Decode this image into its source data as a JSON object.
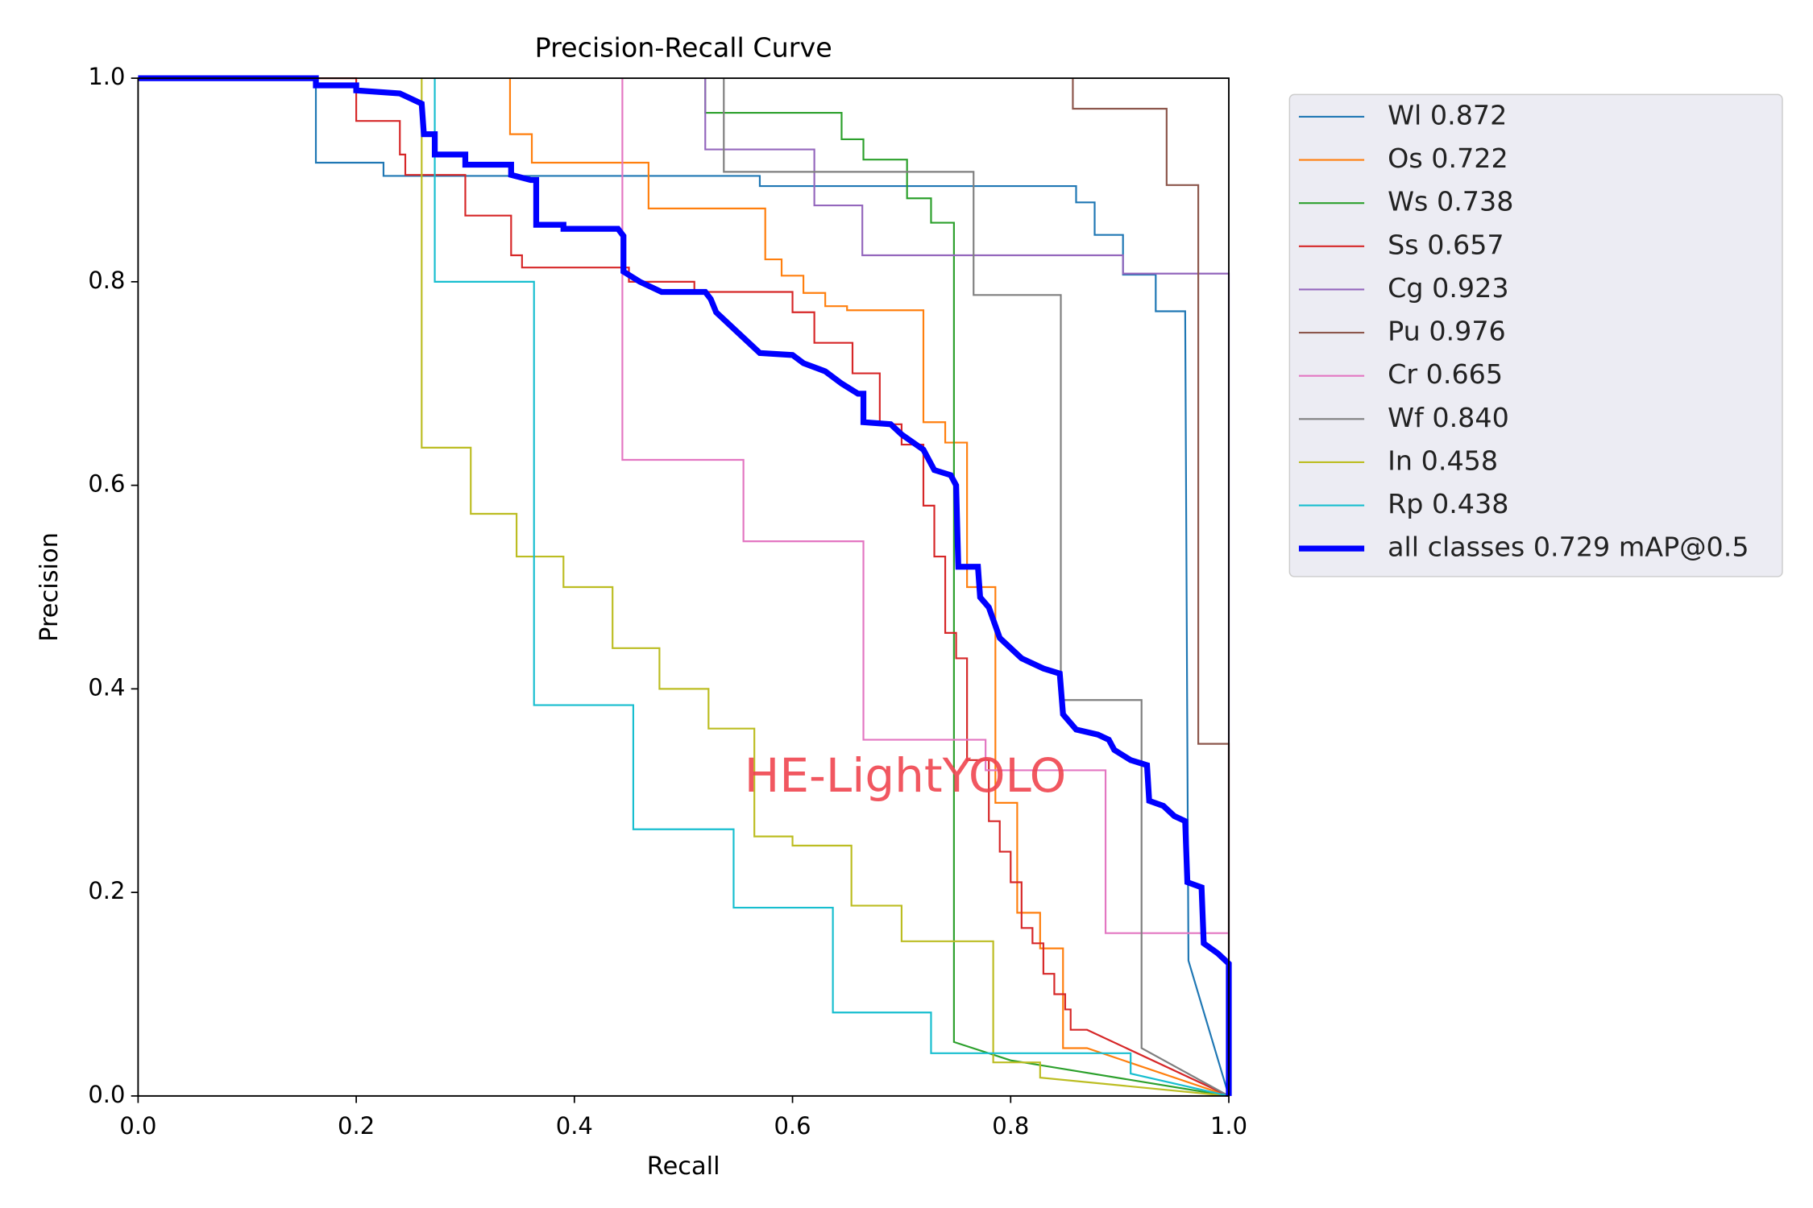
{
  "chart_data": {
    "type": "line",
    "title": "Precision-Recall Curve",
    "x_label": "Recall",
    "y_label": "Precision",
    "annotation": "HE-LightYOLO",
    "xlim": [
      0,
      1
    ],
    "ylim": [
      0,
      1
    ],
    "xticks": [
      {
        "value": 0,
        "label": "0.0"
      },
      0.2,
      0.4,
      0.6,
      0.8,
      {
        "value": 1,
        "label": "1.0"
      }
    ],
    "yticks": [
      {
        "value": 0,
        "label": "0.0"
      },
      0.2,
      0.4,
      0.6,
      0.8,
      {
        "value": 1,
        "label": "1.0"
      }
    ],
    "series": [
      {
        "name": "Wl 0.872",
        "color": "#1f77b4",
        "x": [
          0,
          0.163,
          0.163,
          0.225,
          0.225,
          0.57,
          0.57,
          0.86,
          0.86,
          0.877,
          0.877,
          0.903,
          0.903,
          0.933,
          0.933,
          0.96,
          0.963,
          1
        ],
        "values": [
          1,
          1,
          0.917,
          0.917,
          0.904,
          0.904,
          0.894,
          0.894,
          0.878,
          0.878,
          0.846,
          0.846,
          0.807,
          0.807,
          0.771,
          0.771,
          0.133,
          0
        ]
      },
      {
        "name": "Os 0.722",
        "color": "#ff7f0e",
        "x": [
          0.341,
          0.341,
          0.361,
          0.361,
          0.468,
          0.468,
          0.575,
          0.575,
          0.59,
          0.59,
          0.61,
          0.61,
          0.63,
          0.63,
          0.65,
          0.65,
          0.72,
          0.72,
          0.74,
          0.74,
          0.76,
          0.76,
          0.786,
          0.786,
          0.806,
          0.806,
          0.827,
          0.827,
          0.848,
          0.848,
          0.87,
          1
        ],
        "values": [
          1,
          0.945,
          0.945,
          0.917,
          0.917,
          0.872,
          0.872,
          0.822,
          0.822,
          0.806,
          0.806,
          0.789,
          0.789,
          0.776,
          0.776,
          0.772,
          0.772,
          0.662,
          0.662,
          0.642,
          0.642,
          0.5,
          0.5,
          0.288,
          0.288,
          0.18,
          0.18,
          0.145,
          0.145,
          0.047,
          0.047,
          0
        ]
      },
      {
        "name": "Ws 0.738",
        "color": "#2ca02c",
        "x": [
          0.52,
          0.52,
          0.645,
          0.645,
          0.665,
          0.665,
          0.705,
          0.705,
          0.727,
          0.727,
          0.748,
          0.748,
          0.8,
          1
        ],
        "values": [
          1,
          0.966,
          0.966,
          0.94,
          0.94,
          0.92,
          0.92,
          0.882,
          0.882,
          0.858,
          0.858,
          0.053,
          0.035,
          0
        ]
      },
      {
        "name": "Ss 0.657",
        "color": "#d62728",
        "x": [
          0,
          0.2,
          0.2,
          0.24,
          0.24,
          0.245,
          0.245,
          0.3,
          0.3,
          0.342,
          0.342,
          0.352,
          0.352,
          0.45,
          0.45,
          0.51,
          0.51,
          0.6,
          0.6,
          0.62,
          0.62,
          0.655,
          0.655,
          0.68,
          0.68,
          0.7,
          0.7,
          0.72,
          0.72,
          0.73,
          0.73,
          0.74,
          0.74,
          0.75,
          0.75,
          0.76,
          0.76,
          0.78,
          0.78,
          0.79,
          0.79,
          0.8,
          0.8,
          0.81,
          0.81,
          0.82,
          0.82,
          0.83,
          0.83,
          0.84,
          0.84,
          0.85,
          0.85,
          0.855,
          0.855,
          0.87,
          1
        ],
        "values": [
          1,
          1,
          0.958,
          0.958,
          0.925,
          0.925,
          0.905,
          0.905,
          0.865,
          0.865,
          0.826,
          0.826,
          0.814,
          0.814,
          0.8,
          0.8,
          0.79,
          0.79,
          0.77,
          0.77,
          0.74,
          0.74,
          0.71,
          0.71,
          0.66,
          0.66,
          0.64,
          0.64,
          0.58,
          0.58,
          0.53,
          0.53,
          0.455,
          0.455,
          0.43,
          0.43,
          0.33,
          0.33,
          0.27,
          0.27,
          0.24,
          0.24,
          0.21,
          0.21,
          0.165,
          0.165,
          0.15,
          0.15,
          0.12,
          0.12,
          0.1,
          0.1,
          0.085,
          0.085,
          0.065,
          0.065,
          0
        ]
      },
      {
        "name": "Cg 0.923",
        "color": "#9467bd",
        "x": [
          0.52,
          0.52,
          0.62,
          0.62,
          0.664,
          0.664,
          0.903,
          0.903,
          1,
          1
        ],
        "values": [
          1,
          0.93,
          0.93,
          0.875,
          0.875,
          0.826,
          0.826,
          0.808,
          0.808,
          0
        ]
      },
      {
        "name": "Pu 0.976",
        "color": "#8c564b",
        "x": [
          0.857,
          0.857,
          0.943,
          0.943,
          0.972,
          0.972,
          1,
          1
        ],
        "values": [
          1,
          0.97,
          0.97,
          0.895,
          0.895,
          0.346,
          0.346,
          0
        ]
      },
      {
        "name": "Cr 0.665",
        "color": "#e377c2",
        "x": [
          0.444,
          0.444,
          0.555,
          0.555,
          0.665,
          0.665,
          0.777,
          0.777,
          0.887,
          0.887,
          1
        ],
        "values": [
          1,
          0.625,
          0.625,
          0.545,
          0.545,
          0.35,
          0.35,
          0.32,
          0.32,
          0.16,
          0.16
        ]
      },
      {
        "name": "Wf 0.840",
        "color": "#7f7f7f",
        "x": [
          0.537,
          0.537,
          0.766,
          0.766,
          0.846,
          0.846,
          0.92,
          0.92,
          1
        ],
        "values": [
          1,
          0.908,
          0.908,
          0.787,
          0.787,
          0.389,
          0.389,
          0.047,
          0
        ]
      },
      {
        "name": "In 0.458",
        "color": "#bcbd22",
        "x": [
          0.26,
          0.26,
          0.305,
          0.305,
          0.347,
          0.347,
          0.39,
          0.39,
          0.435,
          0.435,
          0.478,
          0.478,
          0.523,
          0.523,
          0.565,
          0.565,
          0.6,
          0.6,
          0.654,
          0.654,
          0.7,
          0.7,
          0.784,
          0.784,
          0.827,
          0.827,
          1
        ],
        "values": [
          1,
          0.637,
          0.637,
          0.572,
          0.572,
          0.53,
          0.53,
          0.5,
          0.5,
          0.44,
          0.44,
          0.4,
          0.4,
          0.361,
          0.361,
          0.255,
          0.255,
          0.246,
          0.246,
          0.187,
          0.187,
          0.152,
          0.152,
          0.033,
          0.033,
          0.018,
          0
        ]
      },
      {
        "name": "Rp 0.438",
        "color": "#17becf",
        "x": [
          0.272,
          0.272,
          0.363,
          0.363,
          0.454,
          0.454,
          0.546,
          0.546,
          0.637,
          0.637,
          0.727,
          0.727,
          0.91,
          0.91,
          1
        ],
        "values": [
          1,
          0.8,
          0.8,
          0.384,
          0.384,
          0.262,
          0.262,
          0.185,
          0.185,
          0.082,
          0.082,
          0.042,
          0.042,
          0.022,
          0
        ]
      },
      {
        "name": "all classes 0.729 mAP@0.5",
        "color": "#0000ff",
        "linewidth": 5,
        "x": [
          0,
          0.163,
          0.163,
          0.2,
          0.2,
          0.24,
          0.25,
          0.26,
          0.262,
          0.272,
          0.272,
          0.3,
          0.3,
          0.342,
          0.342,
          0.36,
          0.365,
          0.365,
          0.39,
          0.39,
          0.44,
          0.445,
          0.445,
          0.46,
          0.48,
          0.52,
          0.525,
          0.53,
          0.55,
          0.57,
          0.6,
          0.61,
          0.63,
          0.645,
          0.66,
          0.665,
          0.665,
          0.69,
          0.7,
          0.72,
          0.73,
          0.745,
          0.75,
          0.752,
          0.77,
          0.772,
          0.78,
          0.79,
          0.8,
          0.81,
          0.83,
          0.845,
          0.848,
          0.86,
          0.88,
          0.89,
          0.895,
          0.91,
          0.925,
          0.927,
          0.94,
          0.95,
          0.96,
          0.962,
          0.975,
          0.977,
          0.99,
          1,
          1
        ],
        "values": [
          1,
          1,
          0.993,
          0.993,
          0.988,
          0.985,
          0.98,
          0.975,
          0.945,
          0.945,
          0.925,
          0.925,
          0.915,
          0.915,
          0.905,
          0.9,
          0.9,
          0.856,
          0.856,
          0.852,
          0.852,
          0.845,
          0.81,
          0.8,
          0.79,
          0.79,
          0.783,
          0.77,
          0.75,
          0.73,
          0.728,
          0.72,
          0.712,
          0.7,
          0.69,
          0.69,
          0.662,
          0.66,
          0.65,
          0.635,
          0.615,
          0.61,
          0.6,
          0.52,
          0.52,
          0.49,
          0.48,
          0.45,
          0.44,
          0.43,
          0.42,
          0.415,
          0.375,
          0.36,
          0.355,
          0.35,
          0.34,
          0.33,
          0.325,
          0.29,
          0.285,
          0.275,
          0.27,
          0.21,
          0.205,
          0.15,
          0.14,
          0.13,
          0
        ]
      }
    ]
  }
}
